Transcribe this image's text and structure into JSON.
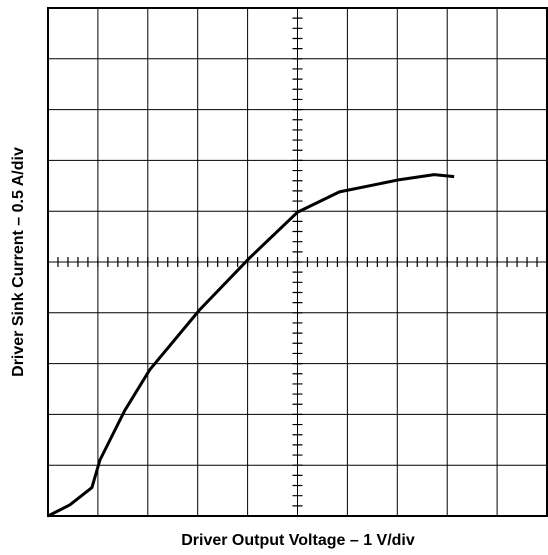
{
  "chart_data": {
    "type": "line",
    "x_label": "Driver Output Voltage – 1 V/div",
    "y_label": "Driver Sink Current – 0.5 A/div",
    "x": [
      0,
      0.44,
      0.88,
      1.04,
      1.54,
      2.04,
      3.04,
      4.04,
      5.0,
      5.84,
      7.04,
      7.74,
      8.14
    ],
    "series": [
      {
        "color": "#000000",
        "values": [
          0,
          0.11,
          0.28,
          0.55,
          1.04,
          1.44,
          2.03,
          2.54,
          2.99,
          3.19,
          3.31,
          3.36,
          3.34
        ]
      }
    ],
    "xlim": [
      0,
      10
    ],
    "xticks": [
      0,
      1,
      2,
      3,
      4,
      5,
      6,
      7,
      8,
      9,
      10
    ],
    "ylim": [
      0,
      5
    ],
    "yticks": [
      0,
      0.5,
      1,
      1.5,
      2,
      2.5,
      3,
      3.5,
      4,
      4.5,
      5
    ],
    "grid": true
  }
}
